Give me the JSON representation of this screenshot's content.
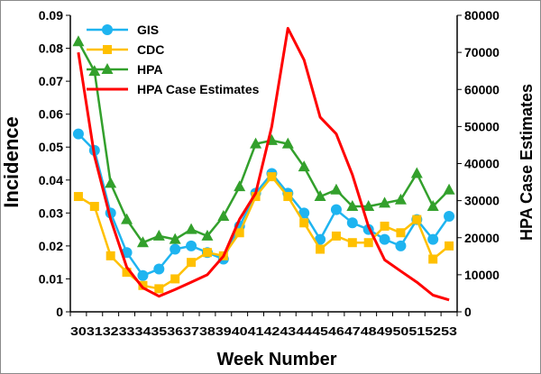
{
  "chart_data": {
    "type": "line",
    "xlabel": "Week Number",
    "ylabel": "Incidence",
    "y2label": "HPA Case Estimates",
    "ylim": [
      0,
      0.09
    ],
    "y2lim": [
      0,
      80000
    ],
    "yticks": [
      "0",
      "0.01",
      "0.02",
      "0.03",
      "0.04",
      "0.05",
      "0.06",
      "0.07",
      "0.08",
      "0.09"
    ],
    "y2ticks": [
      "0",
      "10000",
      "20000",
      "30000",
      "40000",
      "50000",
      "60000",
      "70000",
      "80000"
    ],
    "x": [
      30,
      31,
      32,
      33,
      34,
      35,
      36,
      37,
      38,
      39,
      40,
      41,
      42,
      43,
      44,
      45,
      46,
      47,
      48,
      49,
      50,
      51,
      52,
      53
    ],
    "legend_position": "top-left",
    "grid": false,
    "series": [
      {
        "name": "GIS",
        "axis": "left",
        "color": "#1EB4F0",
        "marker": "circle",
        "values": [
          0.054,
          0.049,
          0.03,
          0.018,
          0.011,
          0.013,
          0.019,
          0.02,
          0.018,
          0.016,
          0.026,
          0.036,
          0.042,
          0.036,
          0.03,
          0.022,
          0.031,
          0.027,
          0.025,
          0.022,
          0.02,
          0.028,
          0.022,
          0.029
        ]
      },
      {
        "name": "CDC",
        "axis": "left",
        "color": "#FFC000",
        "marker": "square",
        "values": [
          0.035,
          0.032,
          0.017,
          0.012,
          0.008,
          0.007,
          0.01,
          0.015,
          0.018,
          0.017,
          0.024,
          0.035,
          0.041,
          0.035,
          0.027,
          0.019,
          0.023,
          0.021,
          0.021,
          0.026,
          0.024,
          0.028,
          0.016,
          0.02
        ]
      },
      {
        "name": "HPA",
        "axis": "left",
        "color": "#33A02C",
        "marker": "triangle",
        "values": [
          0.082,
          0.073,
          0.039,
          0.028,
          0.021,
          0.023,
          0.022,
          0.025,
          0.023,
          0.029,
          0.038,
          0.051,
          0.052,
          0.051,
          0.044,
          0.035,
          0.037,
          0.032,
          0.032,
          0.033,
          0.034,
          0.042,
          0.032,
          0.037
        ]
      },
      {
        "name": "HPA Case Estimates",
        "axis": "right",
        "color": "#FF0000",
        "marker": "none",
        "values": [
          70000,
          42000,
          25000,
          12000,
          6500,
          4200,
          6000,
          8000,
          10000,
          15000,
          25000,
          32000,
          50000,
          76500,
          68000,
          52500,
          48000,
          37000,
          23000,
          14000,
          11000,
          8000,
          4500,
          3200
        ]
      }
    ]
  }
}
